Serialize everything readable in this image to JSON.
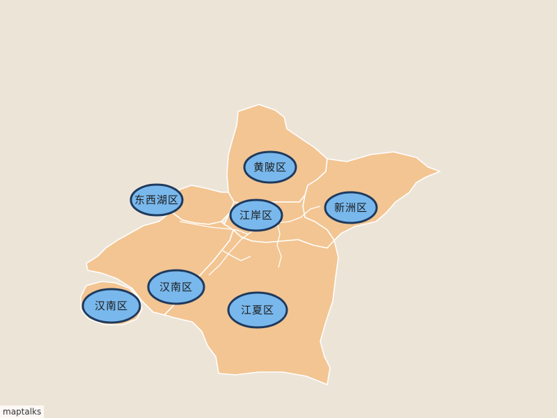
{
  "map": {
    "background_color": "#ede4d8",
    "region_fill": "#f3c592",
    "boundary_color": "#ffffff",
    "marker_fill": "#79b8ec",
    "marker_stroke": "#1e3a5e",
    "markers": [
      {
        "id": "huangpi",
        "label": "黄陂区"
      },
      {
        "id": "dongxihu",
        "label": "东西湖区"
      },
      {
        "id": "jiangan",
        "label": "江岸区"
      },
      {
        "id": "xinzhou",
        "label": "新洲区"
      },
      {
        "id": "hannan-upper",
        "label": "汉南区"
      },
      {
        "id": "hannan-lower",
        "label": "汉南区"
      },
      {
        "id": "jiangxia",
        "label": "江夏区"
      }
    ]
  },
  "attribution": "maptalks"
}
